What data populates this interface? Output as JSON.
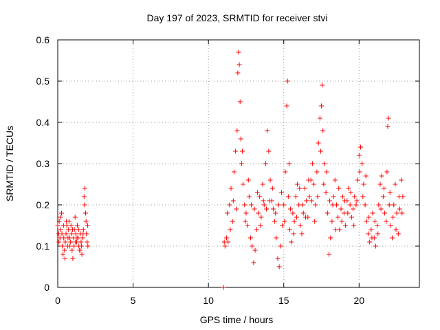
{
  "chart_data": {
    "type": "scatter",
    "title": "Day 197 of 2023, SRMTID for receiver stvi",
    "xlabel": "GPS time / hours",
    "ylabel": "SRMTID / TECUs",
    "xlim": [
      0,
      24
    ],
    "ylim": [
      0,
      0.6
    ],
    "x_ticks": [
      "0",
      "5",
      "10",
      "15",
      "20"
    ],
    "x_tick_values": [
      0,
      5,
      10,
      15,
      20
    ],
    "y_ticks": [
      "0",
      "0.1",
      "0.2",
      "0.3",
      "0.4",
      "0.5",
      "0.6"
    ],
    "y_tick_values": [
      0,
      0.1,
      0.2,
      0.3,
      0.4,
      0.5,
      0.6
    ],
    "grid": true,
    "marker": "+",
    "color": "#ff0000",
    "series": [
      {
        "name": "SRMTID",
        "points": [
          [
            0.0,
            0.15
          ],
          [
            0.05,
            0.13
          ],
          [
            0.1,
            0.16
          ],
          [
            0.15,
            0.12
          ],
          [
            0.2,
            0.14
          ],
          [
            0.25,
            0.18
          ],
          [
            0.3,
            0.1
          ],
          [
            0.35,
            0.08
          ],
          [
            0.4,
            0.12
          ],
          [
            0.45,
            0.09
          ],
          [
            0.5,
            0.11
          ],
          [
            0.55,
            0.13
          ],
          [
            0.6,
            0.15
          ],
          [
            0.65,
            0.1
          ],
          [
            0.7,
            0.14
          ],
          [
            0.75,
            0.16
          ],
          [
            0.8,
            0.12
          ],
          [
            0.85,
            0.11
          ],
          [
            0.9,
            0.13
          ],
          [
            0.95,
            0.09
          ],
          [
            1.0,
            0.07
          ],
          [
            1.05,
            0.12
          ],
          [
            1.1,
            0.14
          ],
          [
            1.15,
            0.17
          ],
          [
            1.2,
            0.13
          ],
          [
            1.25,
            0.11
          ],
          [
            1.3,
            0.15
          ],
          [
            1.35,
            0.12
          ],
          [
            1.4,
            0.1
          ],
          [
            1.45,
            0.09
          ],
          [
            1.5,
            0.13
          ],
          [
            1.55,
            0.11
          ],
          [
            1.6,
            0.08
          ],
          [
            1.65,
            0.12
          ],
          [
            1.7,
            0.14
          ],
          [
            1.75,
            0.22
          ],
          [
            1.8,
            0.24
          ],
          [
            1.85,
            0.18
          ],
          [
            1.9,
            0.13
          ],
          [
            1.95,
            0.11
          ],
          [
            2.0,
            0.1
          ],
          [
            0.08,
            0.11
          ],
          [
            0.18,
            0.17
          ],
          [
            0.28,
            0.13
          ],
          [
            0.38,
            0.15
          ],
          [
            0.48,
            0.07
          ],
          [
            0.58,
            0.16
          ],
          [
            0.68,
            0.12
          ],
          [
            0.78,
            0.1
          ],
          [
            0.88,
            0.15
          ],
          [
            0.98,
            0.14
          ],
          [
            1.08,
            0.1
          ],
          [
            1.18,
            0.11
          ],
          [
            1.28,
            0.12
          ],
          [
            1.38,
            0.14
          ],
          [
            1.48,
            0.09
          ],
          [
            1.58,
            0.1
          ],
          [
            1.68,
            0.13
          ],
          [
            1.78,
            0.2
          ],
          [
            1.88,
            0.16
          ],
          [
            1.98,
            0.15
          ],
          [
            11.0,
            0.0
          ],
          [
            11.1,
            0.1
          ],
          [
            11.2,
            0.12
          ],
          [
            11.3,
            0.11
          ],
          [
            11.4,
            0.2
          ],
          [
            11.5,
            0.24
          ],
          [
            11.6,
            0.16
          ],
          [
            11.7,
            0.28
          ],
          [
            11.8,
            0.33
          ],
          [
            11.9,
            0.38
          ],
          [
            11.95,
            0.52
          ],
          [
            12.0,
            0.57
          ],
          [
            12.05,
            0.54
          ],
          [
            12.1,
            0.45
          ],
          [
            12.15,
            0.36
          ],
          [
            12.2,
            0.3
          ],
          [
            12.3,
            0.25
          ],
          [
            12.4,
            0.2
          ],
          [
            12.5,
            0.18
          ],
          [
            12.6,
            0.15
          ],
          [
            12.7,
            0.22
          ],
          [
            12.8,
            0.12
          ],
          [
            12.9,
            0.1
          ],
          [
            13.0,
            0.06
          ],
          [
            13.1,
            0.09
          ],
          [
            13.2,
            0.14
          ],
          [
            13.3,
            0.18
          ],
          [
            13.4,
            0.22
          ],
          [
            13.5,
            0.17
          ],
          [
            13.6,
            0.25
          ],
          [
            13.7,
            0.2
          ],
          [
            13.8,
            0.3
          ],
          [
            13.9,
            0.38
          ],
          [
            14.0,
            0.33
          ],
          [
            14.1,
            0.26
          ],
          [
            14.2,
            0.21
          ],
          [
            14.3,
            0.19
          ],
          [
            14.4,
            0.16
          ],
          [
            14.5,
            0.12
          ],
          [
            14.6,
            0.07
          ],
          [
            14.7,
            0.05
          ],
          [
            14.8,
            0.1
          ],
          [
            14.9,
            0.15
          ],
          [
            15.0,
            0.2
          ],
          [
            15.1,
            0.28
          ],
          [
            15.2,
            0.44
          ],
          [
            15.25,
            0.5
          ],
          [
            15.3,
            0.22
          ],
          [
            15.4,
            0.14
          ],
          [
            15.5,
            0.11
          ],
          [
            15.6,
            0.18
          ],
          [
            15.7,
            0.16
          ],
          [
            15.8,
            0.22
          ],
          [
            15.9,
            0.25
          ],
          [
            16.0,
            0.2
          ],
          [
            16.1,
            0.15
          ],
          [
            16.2,
            0.13
          ],
          [
            16.3,
            0.18
          ],
          [
            16.4,
            0.24
          ],
          [
            16.5,
            0.21
          ],
          [
            16.6,
            0.17
          ],
          [
            16.7,
            0.22
          ],
          [
            16.8,
            0.26
          ],
          [
            16.9,
            0.3
          ],
          [
            17.0,
            0.25
          ],
          [
            17.1,
            0.2
          ],
          [
            17.2,
            0.28
          ],
          [
            17.3,
            0.35
          ],
          [
            17.4,
            0.41
          ],
          [
            17.5,
            0.44
          ],
          [
            17.55,
            0.49
          ],
          [
            17.6,
            0.38
          ],
          [
            17.7,
            0.3
          ],
          [
            17.8,
            0.23
          ],
          [
            17.9,
            0.18
          ],
          [
            18.0,
            0.08
          ],
          [
            18.1,
            0.12
          ],
          [
            18.2,
            0.16
          ],
          [
            18.3,
            0.22
          ],
          [
            18.4,
            0.26
          ],
          [
            18.5,
            0.2
          ],
          [
            18.6,
            0.17
          ],
          [
            18.7,
            0.14
          ],
          [
            18.8,
            0.19
          ],
          [
            18.9,
            0.22
          ],
          [
            19.0,
            0.18
          ],
          [
            19.1,
            0.15
          ],
          [
            19.2,
            0.21
          ],
          [
            19.3,
            0.24
          ],
          [
            19.4,
            0.2
          ],
          [
            19.5,
            0.17
          ],
          [
            19.6,
            0.19
          ],
          [
            19.7,
            0.22
          ],
          [
            19.8,
            0.2
          ],
          [
            19.9,
            0.26
          ],
          [
            20.0,
            0.32
          ],
          [
            20.1,
            0.34
          ],
          [
            20.2,
            0.3
          ],
          [
            20.3,
            0.25
          ],
          [
            20.4,
            0.2
          ],
          [
            20.5,
            0.16
          ],
          [
            20.6,
            0.13
          ],
          [
            20.7,
            0.11
          ],
          [
            20.8,
            0.14
          ],
          [
            20.9,
            0.18
          ],
          [
            21.0,
            0.12
          ],
          [
            21.1,
            0.1
          ],
          [
            21.2,
            0.15
          ],
          [
            21.3,
            0.2
          ],
          [
            21.4,
            0.25
          ],
          [
            21.5,
            0.27
          ],
          [
            21.6,
            0.22
          ],
          [
            21.7,
            0.18
          ],
          [
            21.8,
            0.16
          ],
          [
            21.9,
            0.39
          ],
          [
            21.95,
            0.41
          ],
          [
            22.0,
            0.2
          ],
          [
            22.1,
            0.15
          ],
          [
            22.2,
            0.12
          ],
          [
            22.3,
            0.2
          ],
          [
            22.4,
            0.25
          ],
          [
            22.5,
            0.18
          ],
          [
            22.6,
            0.13
          ],
          [
            22.7,
            0.19
          ],
          [
            22.8,
            0.26
          ],
          [
            22.9,
            0.22
          ],
          [
            11.05,
            0.11
          ],
          [
            11.25,
            0.18
          ],
          [
            11.45,
            0.14
          ],
          [
            11.65,
            0.21
          ],
          [
            11.85,
            0.19
          ],
          [
            12.25,
            0.33
          ],
          [
            12.45,
            0.16
          ],
          [
            12.65,
            0.26
          ],
          [
            12.85,
            0.2
          ],
          [
            13.05,
            0.19
          ],
          [
            13.25,
            0.23
          ],
          [
            13.45,
            0.15
          ],
          [
            13.65,
            0.21
          ],
          [
            13.85,
            0.19
          ],
          [
            14.05,
            0.21
          ],
          [
            14.25,
            0.24
          ],
          [
            14.45,
            0.18
          ],
          [
            14.65,
            0.2
          ],
          [
            14.85,
            0.23
          ],
          [
            15.05,
            0.16
          ],
          [
            15.35,
            0.3
          ],
          [
            15.45,
            0.19
          ],
          [
            15.65,
            0.13
          ],
          [
            15.85,
            0.17
          ],
          [
            16.05,
            0.24
          ],
          [
            16.25,
            0.2
          ],
          [
            16.45,
            0.17
          ],
          [
            16.65,
            0.26
          ],
          [
            16.85,
            0.21
          ],
          [
            17.05,
            0.16
          ],
          [
            17.25,
            0.22
          ],
          [
            17.45,
            0.33
          ],
          [
            17.65,
            0.25
          ],
          [
            17.85,
            0.28
          ],
          [
            18.05,
            0.21
          ],
          [
            18.25,
            0.2
          ],
          [
            18.45,
            0.14
          ],
          [
            18.65,
            0.24
          ],
          [
            18.85,
            0.16
          ],
          [
            19.05,
            0.21
          ],
          [
            19.25,
            0.18
          ],
          [
            19.45,
            0.23
          ],
          [
            19.65,
            0.15
          ],
          [
            19.85,
            0.21
          ],
          [
            20.05,
            0.28
          ],
          [
            20.25,
            0.22
          ],
          [
            20.45,
            0.27
          ],
          [
            20.65,
            0.17
          ],
          [
            20.85,
            0.12
          ],
          [
            21.05,
            0.16
          ],
          [
            21.25,
            0.13
          ],
          [
            21.45,
            0.19
          ],
          [
            21.65,
            0.24
          ],
          [
            21.85,
            0.28
          ],
          [
            22.05,
            0.23
          ],
          [
            22.25,
            0.17
          ],
          [
            22.45,
            0.14
          ],
          [
            22.65,
            0.22
          ],
          [
            22.85,
            0.18
          ]
        ]
      }
    ]
  }
}
